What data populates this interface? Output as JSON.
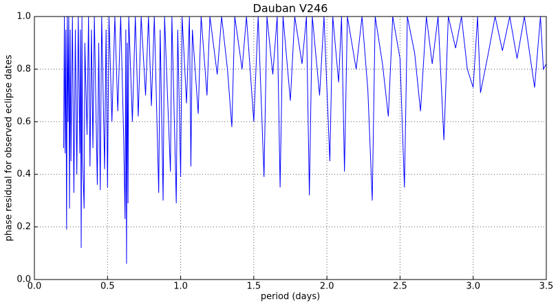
{
  "chart_data": {
    "type": "line",
    "title": "Dauban V246",
    "xlabel": "period (days)",
    "ylabel": "phase residual for observed eclipse dates",
    "xlim": [
      0,
      3.5
    ],
    "ylim": [
      0,
      1
    ],
    "xticks": [
      {
        "value": 0,
        "label": "0.0"
      },
      0.5,
      {
        "value": 1,
        "label": "1.0"
      },
      1.5,
      {
        "value": 2,
        "label": "2.0"
      },
      2.5,
      {
        "value": 3,
        "label": "3.0"
      },
      3.5
    ],
    "yticks": [
      {
        "value": 0,
        "label": "0.0"
      },
      0.2,
      0.4,
      0.6,
      0.8,
      {
        "value": 1,
        "label": "1.0"
      }
    ],
    "grid": true,
    "color": "#0000ff",
    "x": [
      0.2,
      0.205,
      0.21,
      0.215,
      0.22,
      0.225,
      0.23,
      0.235,
      0.24,
      0.245,
      0.25,
      0.26,
      0.27,
      0.28,
      0.29,
      0.3,
      0.31,
      0.315,
      0.32,
      0.325,
      0.33,
      0.34,
      0.345,
      0.36,
      0.37,
      0.38,
      0.39,
      0.4,
      0.41,
      0.43,
      0.44,
      0.45,
      0.46,
      0.48,
      0.49,
      0.5,
      0.51,
      0.53,
      0.55,
      0.57,
      0.59,
      0.61,
      0.62,
      0.625,
      0.63,
      0.635,
      0.64,
      0.645,
      0.67,
      0.69,
      0.71,
      0.73,
      0.76,
      0.78,
      0.8,
      0.82,
      0.85,
      0.86,
      0.88,
      0.89,
      0.91,
      0.93,
      0.94,
      0.97,
      0.98,
      1.0,
      1.01,
      1.04,
      1.06,
      1.07,
      1.08,
      1.12,
      1.14,
      1.18,
      1.2,
      1.25,
      1.28,
      1.32,
      1.35,
      1.37,
      1.42,
      1.45,
      1.5,
      1.53,
      1.57,
      1.59,
      1.63,
      1.66,
      1.68,
      1.7,
      1.75,
      1.78,
      1.83,
      1.86,
      1.88,
      1.9,
      1.95,
      1.98,
      2.02,
      2.04,
      2.08,
      2.1,
      2.12,
      2.14,
      2.2,
      2.24,
      2.28,
      2.31,
      2.33,
      2.38,
      2.42,
      2.45,
      2.5,
      2.53,
      2.55,
      2.6,
      2.64,
      2.68,
      2.72,
      2.76,
      2.8,
      2.83,
      2.88,
      2.92,
      2.96,
      3.0,
      3.03,
      3.05,
      3.1,
      3.15,
      3.2,
      3.25,
      3.3,
      3.35,
      3.42,
      3.46,
      3.48,
      3.5
    ],
    "values": [
      0.5,
      1.0,
      0.48,
      0.95,
      0.19,
      1.0,
      0.6,
      1.0,
      0.27,
      0.95,
      0.45,
      1.0,
      0.33,
      0.95,
      0.4,
      1.0,
      0.48,
      0.95,
      0.12,
      1.0,
      0.45,
      0.27,
      0.9,
      0.55,
      1.0,
      0.43,
      0.95,
      0.5,
      1.0,
      0.36,
      0.9,
      0.34,
      1.0,
      0.42,
      0.95,
      0.35,
      1.0,
      0.6,
      1.0,
      0.64,
      1.0,
      0.55,
      0.23,
      0.95,
      0.06,
      0.9,
      0.29,
      1.0,
      0.6,
      1.0,
      0.62,
      1.0,
      0.7,
      1.0,
      0.66,
      1.0,
      0.33,
      0.95,
      0.3,
      1.0,
      0.7,
      0.41,
      1.0,
      0.29,
      0.95,
      0.39,
      1.0,
      0.67,
      1.0,
      0.43,
      0.95,
      0.63,
      1.0,
      0.7,
      1.0,
      0.78,
      1.0,
      0.8,
      0.58,
      1.0,
      0.8,
      1.0,
      0.6,
      1.0,
      0.39,
      1.0,
      0.78,
      1.0,
      0.35,
      1.0,
      0.68,
      1.0,
      0.82,
      1.0,
      0.32,
      1.0,
      0.7,
      1.0,
      0.45,
      1.0,
      0.75,
      1.0,
      0.41,
      1.0,
      0.8,
      1.0,
      0.72,
      0.3,
      1.0,
      0.82,
      0.62,
      1.0,
      0.84,
      0.35,
      1.0,
      0.86,
      0.64,
      1.0,
      0.82,
      1.0,
      0.53,
      1.0,
      0.88,
      1.0,
      0.8,
      0.73,
      1.0,
      0.71,
      0.85,
      1.0,
      0.87,
      1.0,
      0.84,
      1.0,
      0.73,
      1.0,
      0.8,
      0.82
    ]
  }
}
